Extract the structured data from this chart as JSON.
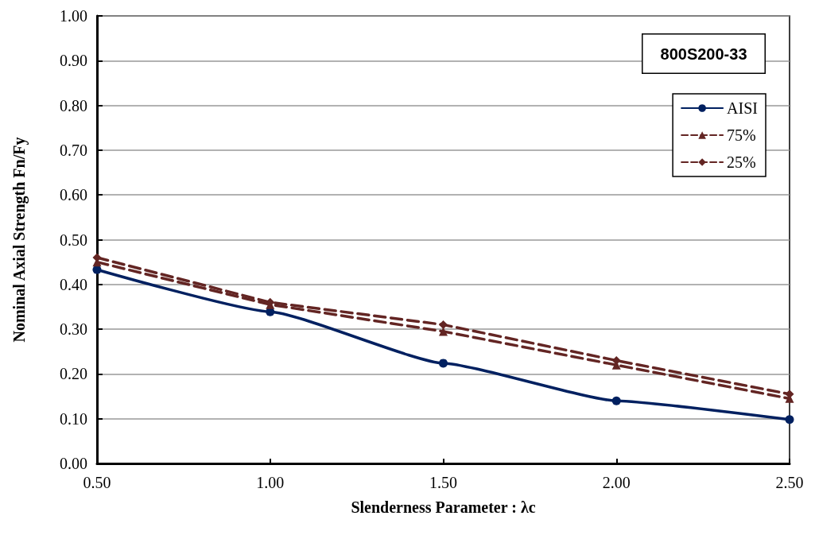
{
  "chart_data": {
    "type": "line",
    "xlabel": "Slenderness Parameter : λc",
    "ylabel": "Nominal Axial Strength Fn/Fy",
    "annotations": [
      "800S200-33"
    ],
    "x": [
      0.5,
      1.0,
      1.5,
      2.0,
      2.5
    ],
    "series": [
      {
        "name": "AISI",
        "color": "#002060",
        "marker": "circle",
        "line_style": "solid",
        "values": [
          0.433,
          0.339,
          0.224,
          0.14,
          0.098
        ]
      },
      {
        "name": "75%",
        "color": "#632523",
        "marker": "triangle",
        "line_style": "dashed",
        "values": [
          0.45,
          0.355,
          0.295,
          0.22,
          0.145
        ]
      },
      {
        "name": "25%",
        "color": "#632523",
        "marker": "diamond",
        "line_style": "dashed",
        "values": [
          0.46,
          0.36,
          0.31,
          0.23,
          0.155
        ]
      }
    ],
    "xlim": [
      0.5,
      2.5
    ],
    "xticks": [
      {
        "value": 0.5,
        "label": "0.50"
      },
      {
        "value": 1,
        "label": "1.00"
      },
      {
        "value": 1.5,
        "label": "1.50"
      },
      {
        "value": 2,
        "label": "2.00"
      },
      {
        "value": 2.5,
        "label": "2.50"
      }
    ],
    "ylim": [
      0,
      1
    ],
    "yticks": [
      {
        "value": 0,
        "label": "0.00"
      },
      {
        "value": 0.1,
        "label": "0.10"
      },
      {
        "value": 0.2,
        "label": "0.20"
      },
      {
        "value": 0.3,
        "label": "0.30"
      },
      {
        "value": 0.4,
        "label": "0.40"
      },
      {
        "value": 0.5,
        "label": "0.50"
      },
      {
        "value": 0.6,
        "label": "0.60"
      },
      {
        "value": 0.7,
        "label": "0.70"
      },
      {
        "value": 0.8,
        "label": "0.80"
      },
      {
        "value": 0.9,
        "label": "0.90"
      },
      {
        "value": 1,
        "label": "1.00"
      }
    ],
    "grid": "y",
    "legend": "top right"
  }
}
